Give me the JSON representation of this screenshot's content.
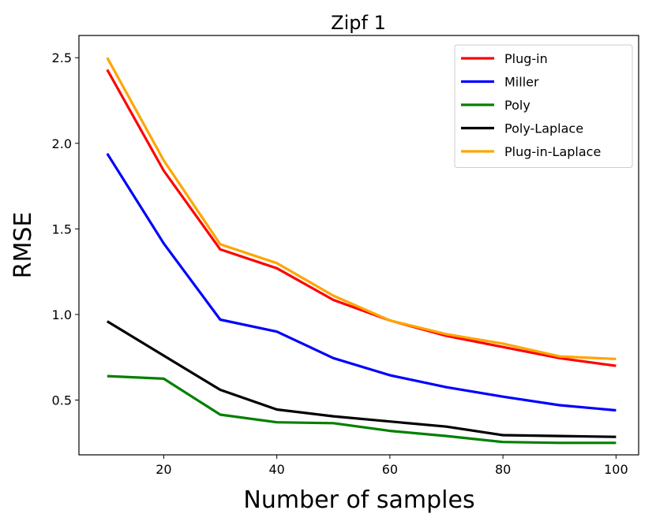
{
  "chart_data": {
    "type": "line",
    "title": "Zipf 1",
    "xlabel": "Number of samples",
    "ylabel": "RMSE",
    "xlim": [
      5,
      104
    ],
    "ylim": [
      0.18,
      2.63
    ],
    "xticks": [
      20,
      40,
      60,
      80,
      100
    ],
    "yticks": [
      0.5,
      1.0,
      1.5,
      2.0,
      2.5
    ],
    "xtick_labels": [
      "20",
      "40",
      "60",
      "80",
      "100"
    ],
    "ytick_labels": [
      "0.5",
      "1.0",
      "1.5",
      "2.0",
      "2.5"
    ],
    "grid": false,
    "legend_position": "top-right",
    "x": [
      10,
      20,
      30,
      40,
      50,
      60,
      70,
      80,
      90,
      100
    ],
    "series": [
      {
        "name": "Plug-in",
        "color": "#ff0000",
        "values": [
          2.43,
          1.84,
          1.38,
          1.27,
          1.085,
          0.965,
          0.875,
          0.81,
          0.745,
          0.7
        ]
      },
      {
        "name": "Miller",
        "color": "#0000ff",
        "values": [
          1.94,
          1.415,
          0.97,
          0.9,
          0.745,
          0.645,
          0.575,
          0.52,
          0.47,
          0.44
        ]
      },
      {
        "name": "Poly",
        "color": "#008000",
        "values": [
          0.64,
          0.625,
          0.415,
          0.37,
          0.365,
          0.32,
          0.29,
          0.255,
          0.25,
          0.25
        ]
      },
      {
        "name": "Poly-Laplace",
        "color": "#000000",
        "values": [
          0.96,
          0.76,
          0.56,
          0.445,
          0.405,
          0.375,
          0.345,
          0.295,
          0.29,
          0.285
        ]
      },
      {
        "name": "Plug-in-Laplace",
        "color": "#ffa500",
        "values": [
          2.5,
          1.9,
          1.41,
          1.3,
          1.11,
          0.965,
          0.885,
          0.83,
          0.755,
          0.74
        ]
      }
    ]
  }
}
